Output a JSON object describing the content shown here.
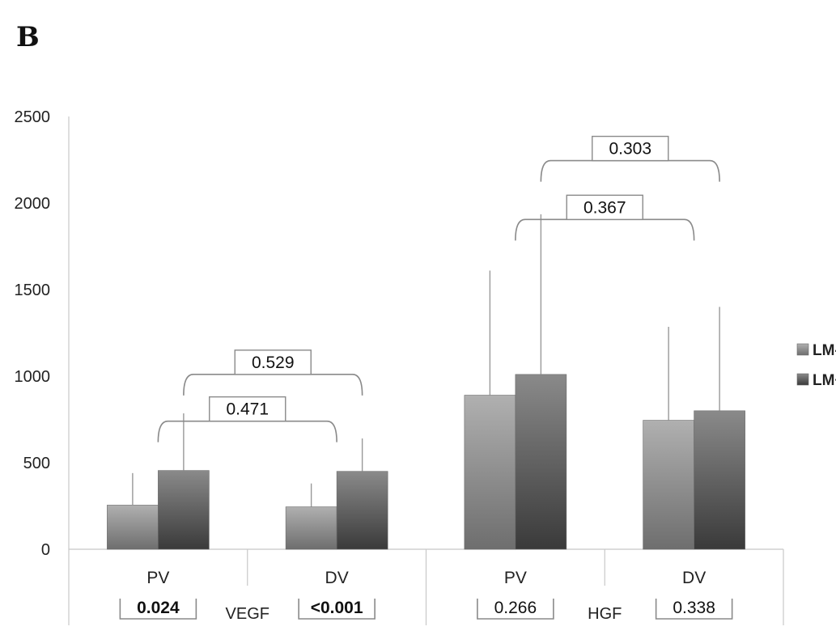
{
  "panel_label": "B",
  "chart_data": {
    "type": "bar",
    "title": "",
    "xlabel": "",
    "ylabel": "",
    "ylim": [
      0,
      2500
    ],
    "yticks": [
      0,
      500,
      1000,
      1500,
      2000,
      2500
    ],
    "grid": false,
    "legend_position": "right",
    "groups": [
      {
        "label": "VEGF",
        "categories": [
          "PV",
          "DV"
        ]
      },
      {
        "label": "HGF",
        "categories": [
          "PV",
          "DV"
        ]
      }
    ],
    "categories": [
      "PV",
      "DV",
      "PV",
      "DV"
    ],
    "series": [
      {
        "name": "LM-",
        "values": [
          255,
          245,
          890,
          745
        ],
        "error_upper": [
          440,
          380,
          1610,
          1285
        ],
        "color_top": "#b0b0b0",
        "color_bottom": "#6e6e6e"
      },
      {
        "name": "LM+",
        "values": [
          455,
          450,
          1010,
          800
        ],
        "error_upper": [
          785,
          640,
          1935,
          1400
        ],
        "color_top": "#8a8a8a",
        "color_bottom": "#3a3a3a"
      }
    ],
    "annotations": {
      "brackets": [
        {
          "text": "0.471",
          "left": "VEGF PV",
          "right": "VEGF DV",
          "level": 740
        },
        {
          "text": "0.529",
          "left": "VEGF PV LM+",
          "right": "VEGF DV LM+",
          "level": 1010
        },
        {
          "text": "0.367",
          "left": "HGF PV",
          "right": "HGF DV",
          "level": 1905
        },
        {
          "text": "0.303",
          "left": "HGF PV LM+",
          "right": "HGF DV LM+",
          "level": 2245
        }
      ],
      "bottom_pvalues": [
        {
          "text": "0.024",
          "bold": true,
          "category_index": 0
        },
        {
          "text": "<0.001",
          "bold": true,
          "category_index": 1
        },
        {
          "text": "0.266",
          "bold": false,
          "category_index": 2
        },
        {
          "text": "0.338",
          "bold": false,
          "category_index": 3
        }
      ]
    }
  }
}
